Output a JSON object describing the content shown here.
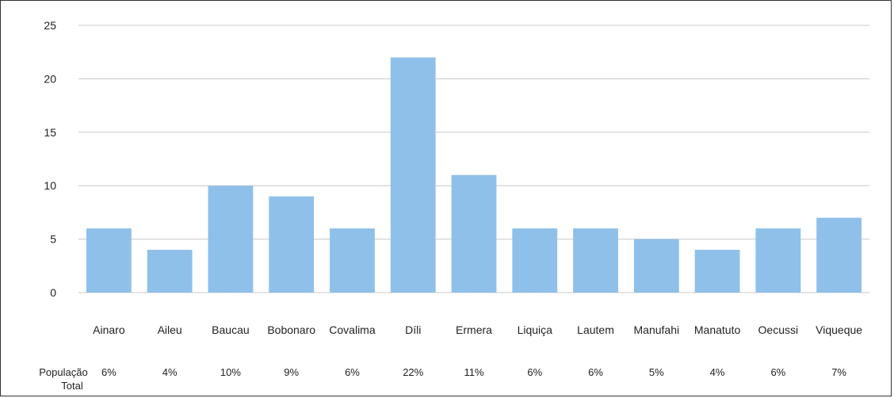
{
  "chart_data": {
    "type": "bar",
    "categories": [
      "Ainaro",
      "Aileu",
      "Baucau",
      "Bobonaro",
      "Covalima",
      "Díli",
      "Ermera",
      "Liquiça",
      "Lautem",
      "Manufahi",
      "Manatuto",
      "Oecussi",
      "Viqueque"
    ],
    "values": [
      6,
      4,
      10,
      9,
      6,
      22,
      11,
      6,
      6,
      5,
      4,
      6,
      7
    ],
    "title": "",
    "xlabel": "",
    "ylabel": "",
    "ylim": [
      0,
      25
    ],
    "yticks": [
      0,
      5,
      10,
      15,
      20,
      25
    ],
    "grid": true,
    "bar_color": "#8ec0ea",
    "grid_color": "#c8c8c8",
    "table_row": {
      "label_line1": "População",
      "label_line2": "Total",
      "values": [
        "6%",
        "4%",
        "10%",
        "9%",
        "6%",
        "22%",
        "11%",
        "6%",
        "6%",
        "5%",
        "4%",
        "6%",
        "7%"
      ]
    }
  }
}
